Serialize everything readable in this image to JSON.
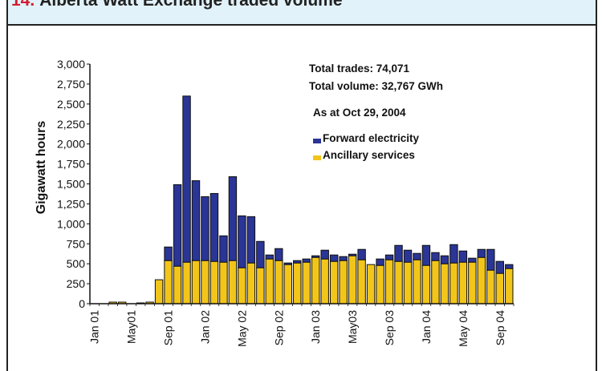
{
  "header": {
    "figure_number": "14.",
    "title": "Alberta Watt Exchange traded volume"
  },
  "colors": {
    "forward": "#2a3596",
    "ancillary": "#f2c51a",
    "bar_stroke": "#101010",
    "axis": "#111111"
  },
  "chart_data": {
    "type": "bar",
    "stacked": true,
    "title": "",
    "xlabel": "",
    "ylabel": "Gigawatt hours",
    "ylim": [
      0,
      3000
    ],
    "yticks": [
      0,
      250,
      500,
      750,
      1000,
      1250,
      1500,
      1750,
      2000,
      2250,
      2500,
      2750,
      3000
    ],
    "ytick_labels": [
      "0",
      "250",
      "500",
      "750",
      "1,000",
      "1,250",
      "1,500",
      "1,750",
      "2,000",
      "2,250",
      "2,500",
      "2,750",
      "3,000"
    ],
    "xticks": [
      {
        "label": "Jan 01",
        "month_index": 0
      },
      {
        "label": "May01",
        "month_index": 4
      },
      {
        "label": "Sep 01",
        "month_index": 8
      },
      {
        "label": "Jan 02",
        "month_index": 12
      },
      {
        "label": "May 02",
        "month_index": 16
      },
      {
        "label": "Sep 02",
        "month_index": 20
      },
      {
        "label": "Jan 03",
        "month_index": 24
      },
      {
        "label": "May03",
        "month_index": 28
      },
      {
        "label": "Sep 03",
        "month_index": 32
      },
      {
        "label": "Jan 04",
        "month_index": 36
      },
      {
        "label": "May 04",
        "month_index": 40
      },
      {
        "label": "Sep 04",
        "month_index": 44
      }
    ],
    "categories": [
      "Jan 01",
      "Feb 01",
      "Mar 01",
      "Apr 01",
      "May 01",
      "Jun 01",
      "Jul 01",
      "Aug 01",
      "Sep 01",
      "Oct 01",
      "Nov 01",
      "Dec 01",
      "Jan 02",
      "Feb 02",
      "Mar 02",
      "Apr 02",
      "May 02",
      "Jun 02",
      "Jul 02",
      "Aug 02",
      "Sep 02",
      "Oct 02",
      "Nov 02",
      "Dec 02",
      "Jan 03",
      "Feb 03",
      "Mar 03",
      "Apr 03",
      "May 03",
      "Jun 03",
      "Jul 03",
      "Aug 03",
      "Sep 03",
      "Oct 03",
      "Nov 03",
      "Dec 03",
      "Jan 04",
      "Feb 04",
      "Mar 04",
      "Apr 04",
      "May 04",
      "Jun 04",
      "Jul 04",
      "Aug 04",
      "Sep 04",
      "Oct 04"
    ],
    "series": [
      {
        "name": "Ancillary services",
        "values": [
          0,
          0,
          20,
          20,
          0,
          10,
          20,
          300,
          540,
          470,
          520,
          540,
          540,
          530,
          520,
          540,
          450,
          510,
          450,
          560,
          540,
          490,
          510,
          520,
          580,
          560,
          530,
          540,
          600,
          550,
          490,
          480,
          550,
          530,
          520,
          550,
          480,
          540,
          500,
          510,
          520,
          520,
          580,
          420,
          380,
          440
        ]
      },
      {
        "name": "Forward electricity",
        "values": [
          0,
          0,
          0,
          0,
          0,
          0,
          0,
          0,
          170,
          1020,
          2080,
          1000,
          800,
          850,
          330,
          1050,
          650,
          580,
          330,
          50,
          150,
          20,
          30,
          40,
          20,
          110,
          80,
          50,
          20,
          130,
          0,
          80,
          60,
          200,
          150,
          80,
          250,
          100,
          100,
          230,
          140,
          50,
          100,
          260,
          150,
          50
        ]
      }
    ],
    "annotations": {
      "total_trades": "Total trades: 74,071",
      "total_volume": "Total volume: 32,767 GWh",
      "as_at": "As at Oct 29, 2004"
    },
    "legend": {
      "position": "top-right",
      "entries": [
        "Forward electricity",
        "Ancillary services"
      ]
    }
  }
}
